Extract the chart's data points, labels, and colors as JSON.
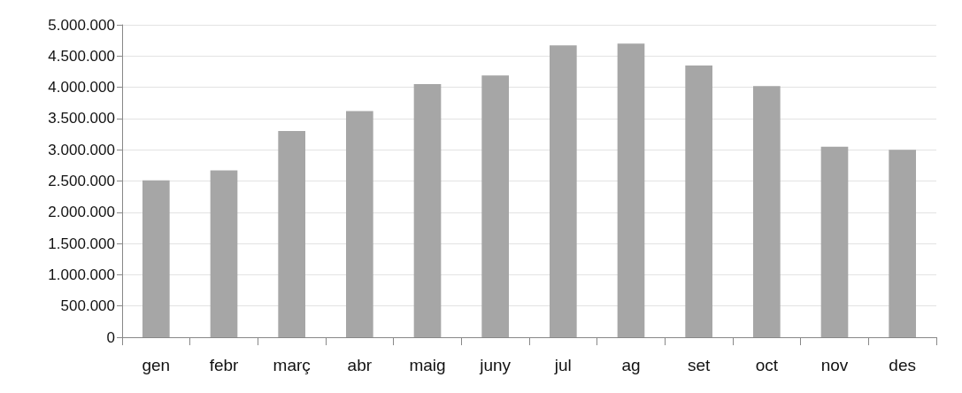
{
  "chart_data": {
    "type": "bar",
    "categories": [
      "gen",
      "febr",
      "març",
      "abr",
      "maig",
      "juny",
      "jul",
      "ag",
      "set",
      "oct",
      "nov",
      "des"
    ],
    "values": [
      2510000,
      2670000,
      3300000,
      3620000,
      4050000,
      4190000,
      4670000,
      4700000,
      4350000,
      4020000,
      3050000,
      3000000
    ],
    "color": "#a6a6a6",
    "ylim": [
      0,
      5000000
    ],
    "yticks": [
      {
        "value": 0,
        "label": "0"
      },
      {
        "value": 500000,
        "label": "500.000"
      },
      {
        "value": 1000000,
        "label": "1.000.000"
      },
      {
        "value": 1500000,
        "label": "1.500.000"
      },
      {
        "value": 2000000,
        "label": "2.000.000"
      },
      {
        "value": 2500000,
        "label": "2.500.000"
      },
      {
        "value": 3000000,
        "label": "3.000.000"
      },
      {
        "value": 3500000,
        "label": "3.500.000"
      },
      {
        "value": 4000000,
        "label": "4.000.000"
      },
      {
        "value": 4500000,
        "label": "4.500.000"
      },
      {
        "value": 5000000,
        "label": "5.000.000"
      }
    ],
    "grid": "y"
  }
}
